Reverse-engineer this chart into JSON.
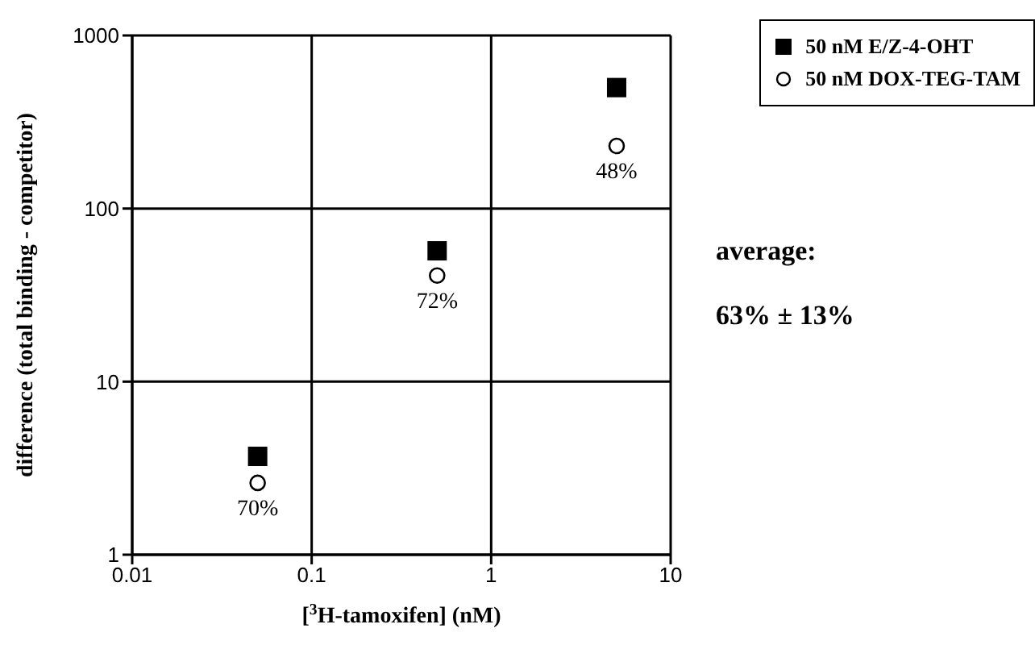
{
  "chart_data": {
    "type": "scatter",
    "xlabel": "[$^{3}$H-tamoxifen] (nM)",
    "ylabel": "difference (total binding - competitor)",
    "x": [
      0.05,
      0.5,
      5
    ],
    "series": [
      {
        "name": "50 nM E/Z-4-OHT",
        "color": "#000000",
        "marker": "square",
        "values": [
          3.7,
          57,
          500
        ]
      },
      {
        "name": "50 nM DOX-TEG-TAM",
        "color": "#000000",
        "marker": "circle",
        "values": [
          2.6,
          41,
          230
        ]
      }
    ],
    "log": "xy",
    "xlim": [
      0.01,
      10
    ],
    "xticks": [
      0.01,
      0.1,
      1,
      10
    ],
    "ylim": [
      1,
      1000
    ],
    "yticks": [
      1,
      10,
      100,
      1000
    ],
    "grid": true,
    "legend": "top right",
    "annotations": [
      "70%",
      "72%",
      "48%",
      "average:",
      "63% ± 13%"
    ]
  }
}
